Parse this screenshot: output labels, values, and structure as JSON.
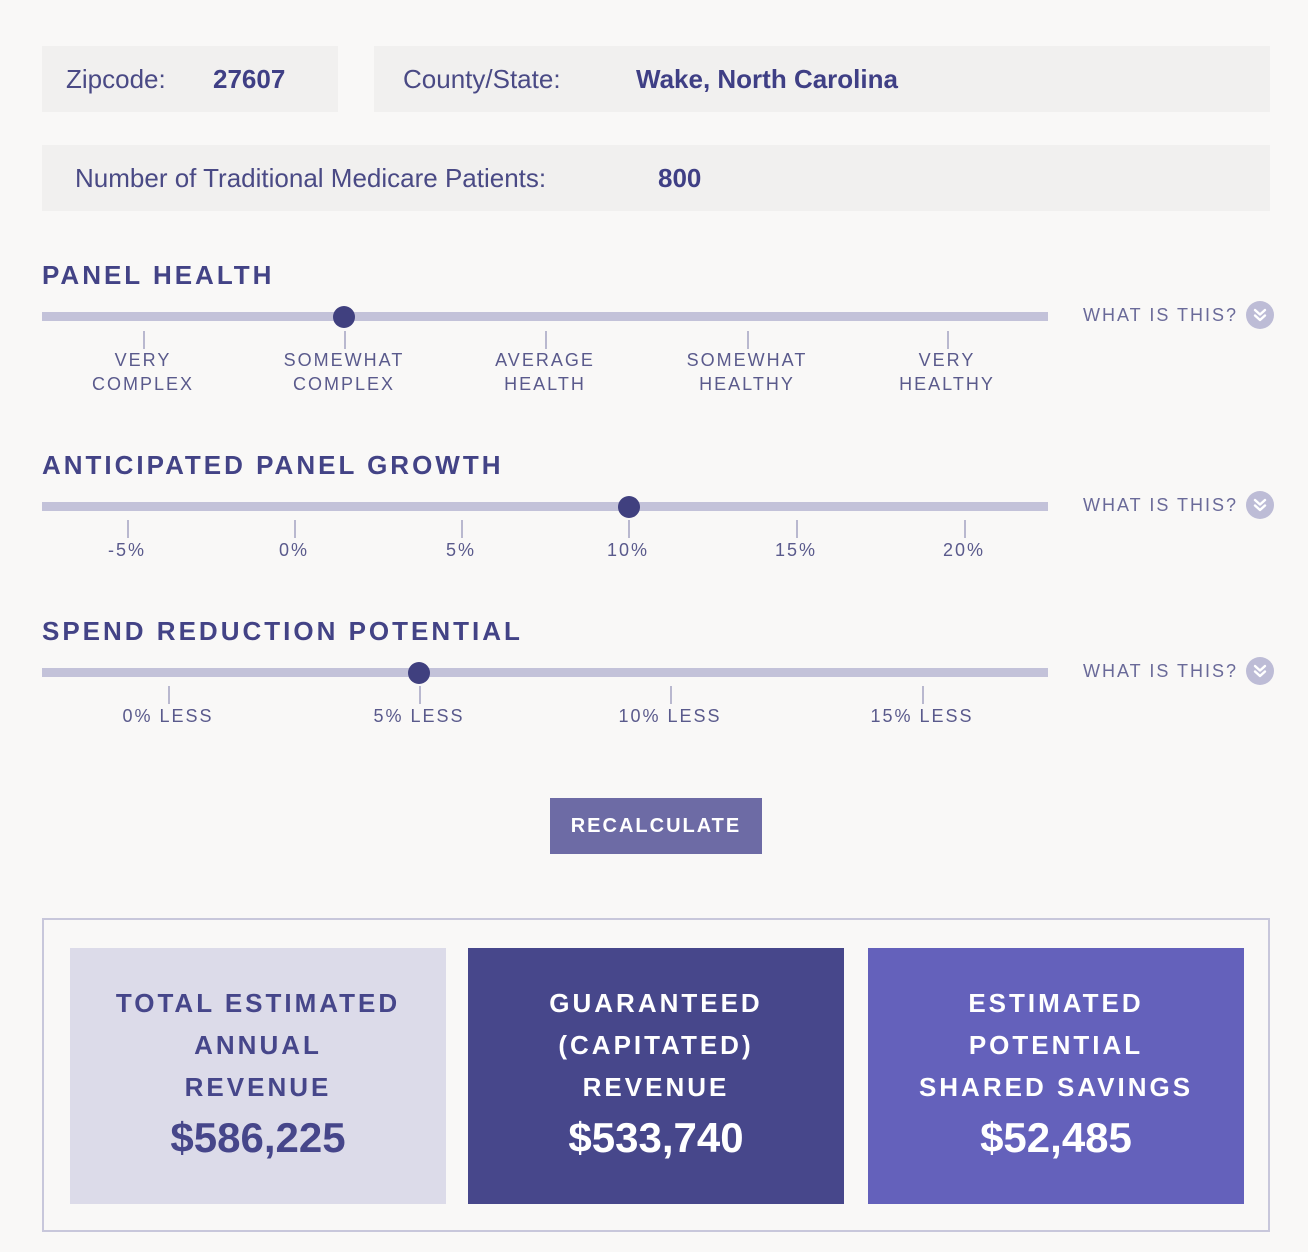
{
  "location": {
    "zip_label": "Zipcode:",
    "zip_value": "27607",
    "county_label": "County/State:",
    "county_value": "Wake, North Carolina"
  },
  "patients": {
    "label": "Number of Traditional Medicare Patients:",
    "value": "800"
  },
  "what_is_this": "WHAT IS THIS?",
  "sliders": {
    "panel_health": {
      "title": "PANEL HEALTH",
      "ticks": [
        {
          "line1": "VERY",
          "line2": "COMPLEX"
        },
        {
          "line1": "SOMEWHAT",
          "line2": "COMPLEX"
        },
        {
          "line1": "AVERAGE",
          "line2": "HEALTH"
        },
        {
          "line1": "SOMEWHAT",
          "line2": "HEALTHY"
        },
        {
          "line1": "VERY",
          "line2": "HEALTHY"
        }
      ],
      "selected": "SOMEWHAT COMPLEX"
    },
    "panel_growth": {
      "title": "ANTICIPATED PANEL GROWTH",
      "ticks": [
        "-5%",
        "0%",
        "5%",
        "10%",
        "15%",
        "20%"
      ],
      "selected": "10%"
    },
    "spend_reduction": {
      "title": "SPEND REDUCTION POTENTIAL",
      "ticks": [
        "0% LESS",
        "5% LESS",
        "10% LESS",
        "15% LESS"
      ],
      "selected": "5% LESS"
    }
  },
  "recalculate_label": "RECALCULATE",
  "results": {
    "total": {
      "line1": "TOTAL ESTIMATED",
      "line2": "ANNUAL",
      "line3": "REVENUE",
      "value": "$586,225"
    },
    "guaranteed": {
      "line1": "GUARANTEED",
      "line2": "(CAPITATED)",
      "line3": "REVENUE",
      "value": "$533,740"
    },
    "savings": {
      "line1": "ESTIMATED",
      "line2": "POTENTIAL",
      "line3": "SHARED SAVINGS",
      "value": "$52,485"
    }
  },
  "colors": {
    "accent": "#454584",
    "track": "#c3c2d9",
    "card_light": "#dcdbe9",
    "card_dark": "#47478b",
    "card_mid": "#6461bb",
    "button": "#6d6ba5"
  }
}
